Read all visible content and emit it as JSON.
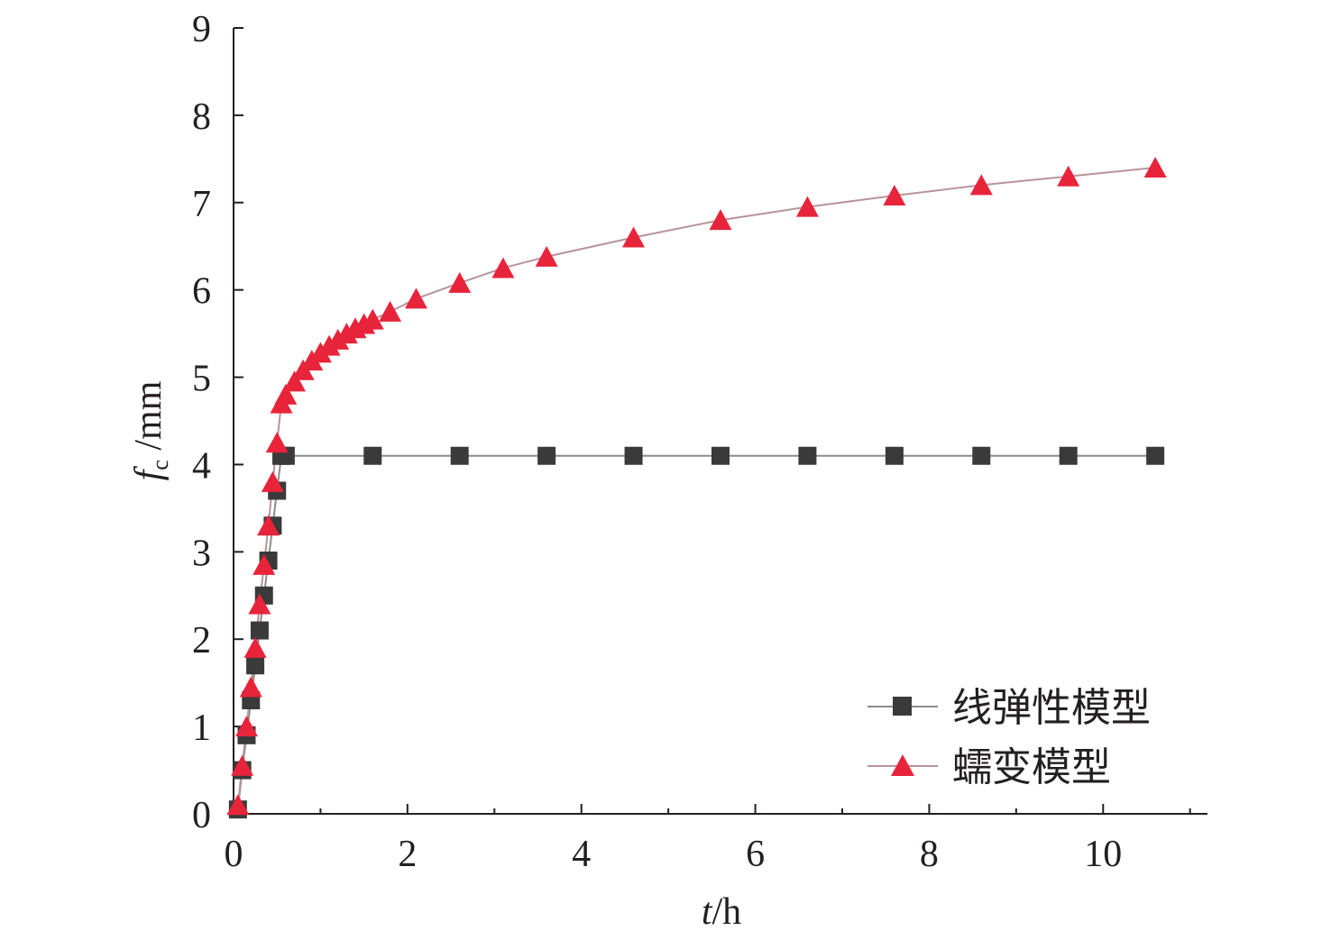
{
  "chart_data": {
    "type": "line",
    "xlabel": {
      "var": "t",
      "unit": "/h"
    },
    "ylabel": {
      "var": "f",
      "sub": "c",
      "unit": " /mm"
    },
    "xlim": [
      0,
      11.2
    ],
    "ylim": [
      0,
      9
    ],
    "xticks": [
      0,
      2,
      4,
      6,
      8,
      10
    ],
    "yticks": [
      0,
      1,
      2,
      3,
      4,
      5,
      6,
      7,
      8,
      9
    ],
    "legend_position": "bottom-right",
    "grid": false,
    "series": [
      {
        "name": "线弹性模型",
        "marker": "square",
        "color": "#3a3a3a",
        "line_color": "#8c8c8c",
        "x": [
          0.05,
          0.1,
          0.15,
          0.2,
          0.25,
          0.3,
          0.35,
          0.4,
          0.45,
          0.5,
          0.55,
          0.6,
          1.6,
          2.6,
          3.6,
          4.6,
          5.6,
          6.6,
          7.6,
          8.6,
          9.6,
          10.6
        ],
        "y": [
          0.05,
          0.5,
          0.9,
          1.3,
          1.7,
          2.1,
          2.5,
          2.9,
          3.3,
          3.7,
          4.1,
          4.1,
          4.1,
          4.1,
          4.1,
          4.1,
          4.1,
          4.1,
          4.1,
          4.1,
          4.1,
          4.1
        ]
      },
      {
        "name": "蠕变模型",
        "marker": "triangle",
        "color": "#e8243a",
        "line_color": "#b8939b",
        "x": [
          0.05,
          0.1,
          0.15,
          0.2,
          0.25,
          0.3,
          0.35,
          0.4,
          0.45,
          0.5,
          0.55,
          0.6,
          0.7,
          0.8,
          0.9,
          1.0,
          1.1,
          1.2,
          1.3,
          1.4,
          1.5,
          1.6,
          1.8,
          2.1,
          2.6,
          3.1,
          3.6,
          4.6,
          5.6,
          6.6,
          7.6,
          8.6,
          9.6,
          10.6
        ],
        "y": [
          0.1,
          0.55,
          1.0,
          1.45,
          1.9,
          2.4,
          2.85,
          3.3,
          3.8,
          4.25,
          4.7,
          4.8,
          4.95,
          5.08,
          5.19,
          5.28,
          5.36,
          5.43,
          5.5,
          5.56,
          5.61,
          5.66,
          5.75,
          5.9,
          6.08,
          6.25,
          6.38,
          6.6,
          6.8,
          6.95,
          7.08,
          7.2,
          7.3,
          7.4
        ]
      }
    ]
  }
}
